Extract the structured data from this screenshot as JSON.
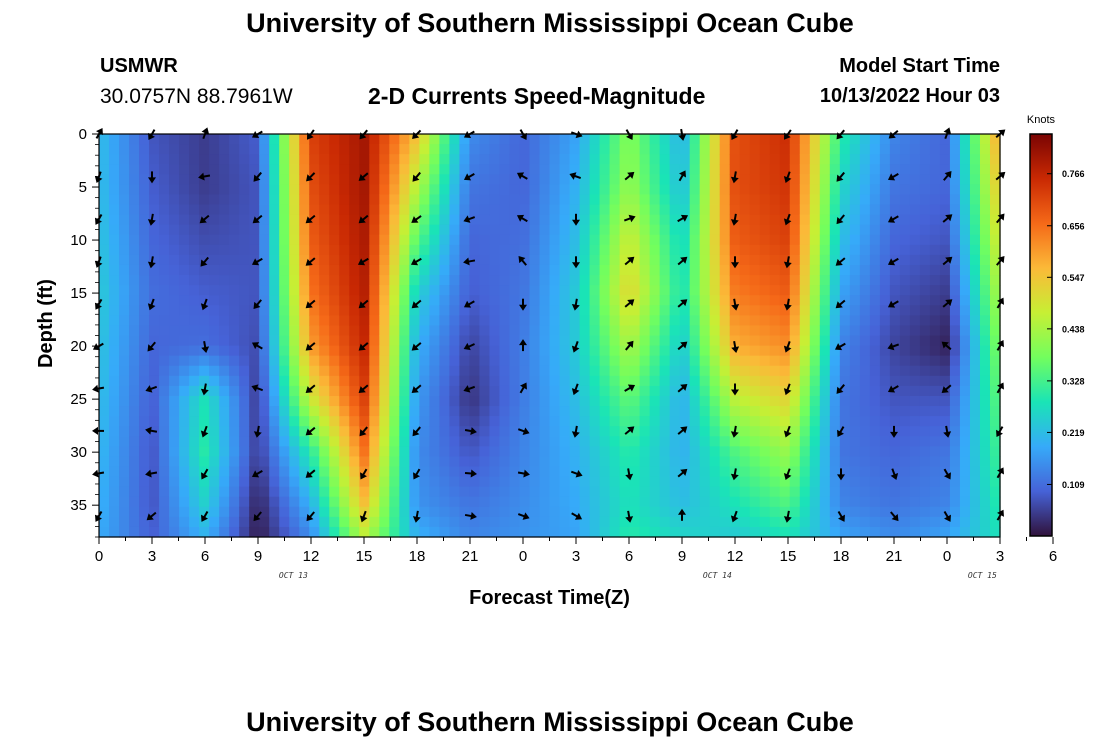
{
  "header": {
    "title": "University of Southern Mississippi Ocean Cube",
    "station": "USMWR",
    "coords": "30.0757N  88.7961W",
    "subtitle": "2-D Currents Speed-Magnitude",
    "model_start_label": "Model Start Time",
    "model_start_value": "10/13/2022 Hour 03"
  },
  "footer": {
    "title": "University of Southern Mississippi Ocean Cube"
  },
  "colors": {
    "stops": [
      "#30123b",
      "#4662d7",
      "#36aaf9",
      "#1ae4b6",
      "#72fe5e",
      "#c7ef34",
      "#fbb938",
      "#f56918",
      "#c92903",
      "#7a0403"
    ]
  },
  "chart_data": {
    "type": "heatmap",
    "xlabel": "Forecast Time(Z)",
    "ylabel": "Depth (ft)",
    "x_ticks": [
      "0",
      "3",
      "6",
      "9",
      "12",
      "15",
      "18",
      "21",
      "0",
      "3",
      "6",
      "9",
      "12",
      "15",
      "18",
      "21",
      "0",
      "3",
      "6"
    ],
    "x_range_hours": [
      0,
      51
    ],
    "y_ticks": [
      "0",
      "5",
      "10",
      "15",
      "20",
      "25",
      "30",
      "35"
    ],
    "y_range_ft": [
      0,
      38
    ],
    "date_labels": [
      {
        "text": "OCT 13",
        "hour": 11
      },
      {
        "text": "OCT 14",
        "hour": 35
      },
      {
        "text": "OCT 15",
        "hour": 50
      }
    ],
    "colorbar": {
      "title": "Knots",
      "ticks": [
        "0.766",
        "0.656",
        "0.547",
        "0.438",
        "0.328",
        "0.219",
        "0.109"
      ],
      "tick_values": [
        0.766,
        0.656,
        0.547,
        0.438,
        0.328,
        0.219,
        0.109
      ],
      "range": [
        0,
        0.85
      ]
    },
    "speed_columns": [
      {
        "hour": 0,
        "speed": [
          0.22,
          0.22,
          0.23,
          0.24,
          0.23,
          0.22,
          0.21,
          0.2,
          0.19
        ]
      },
      {
        "hour": 3,
        "speed": [
          0.08,
          0.09,
          0.1,
          0.11,
          0.1,
          0.09,
          0.08,
          0.08,
          0.09
        ]
      },
      {
        "hour": 6,
        "speed": [
          0.05,
          0.05,
          0.07,
          0.09,
          0.11,
          0.28,
          0.3,
          0.25,
          0.2
        ]
      },
      {
        "hour": 9,
        "speed": [
          0.09,
          0.08,
          0.08,
          0.08,
          0.07,
          0.05,
          0.05,
          0.02,
          0.01
        ]
      },
      {
        "hour": 12,
        "speed": [
          0.72,
          0.7,
          0.68,
          0.65,
          0.6,
          0.48,
          0.3,
          0.2,
          0.15
        ]
      },
      {
        "hour": 15,
        "speed": [
          0.8,
          0.8,
          0.79,
          0.78,
          0.76,
          0.72,
          0.65,
          0.55,
          0.45
        ]
      },
      {
        "hour": 18,
        "speed": [
          0.55,
          0.45,
          0.35,
          0.25,
          0.2,
          0.17,
          0.15,
          0.16,
          0.2
        ]
      },
      {
        "hour": 21,
        "speed": [
          0.15,
          0.12,
          0.1,
          0.09,
          0.06,
          0.04,
          0.08,
          0.12,
          0.14
        ]
      },
      {
        "hour": 24,
        "speed": [
          0.1,
          0.1,
          0.11,
          0.12,
          0.13,
          0.13,
          0.14,
          0.15,
          0.16
        ]
      },
      {
        "hour": 27,
        "speed": [
          0.18,
          0.2,
          0.22,
          0.24,
          0.24,
          0.22,
          0.2,
          0.19,
          0.18
        ]
      },
      {
        "hour": 30,
        "speed": [
          0.4,
          0.42,
          0.48,
          0.52,
          0.44,
          0.36,
          0.3,
          0.28,
          0.3
        ]
      },
      {
        "hour": 33,
        "speed": [
          0.2,
          0.22,
          0.26,
          0.28,
          0.24,
          0.2,
          0.2,
          0.22,
          0.26
        ]
      },
      {
        "hour": 36,
        "speed": [
          0.7,
          0.7,
          0.68,
          0.64,
          0.58,
          0.46,
          0.34,
          0.28,
          0.24
        ]
      },
      {
        "hour": 39,
        "speed": [
          0.75,
          0.74,
          0.72,
          0.68,
          0.62,
          0.52,
          0.42,
          0.34,
          0.28
        ]
      },
      {
        "hour": 42,
        "speed": [
          0.3,
          0.26,
          0.22,
          0.18,
          0.14,
          0.12,
          0.12,
          0.14,
          0.18
        ]
      },
      {
        "hour": 45,
        "speed": [
          0.14,
          0.12,
          0.1,
          0.08,
          0.06,
          0.08,
          0.1,
          0.12,
          0.15
        ]
      },
      {
        "hour": 48,
        "speed": [
          0.1,
          0.1,
          0.08,
          0.05,
          0.02,
          0.08,
          0.12,
          0.14,
          0.18
        ]
      },
      {
        "hour": 51,
        "speed": [
          0.6,
          0.55,
          0.5,
          0.45,
          0.4,
          0.36,
          0.33,
          0.3,
          0.28
        ]
      }
    ],
    "speed_depths_ft": [
      0,
      5,
      10,
      15,
      20,
      25,
      30,
      35,
      38
    ],
    "vector_depths_ft": [
      0,
      4,
      8,
      12,
      16,
      20,
      24,
      28,
      32,
      36
    ],
    "vector_hours": [
      0,
      3,
      6,
      9,
      12,
      15,
      18,
      21,
      24,
      27,
      30,
      33,
      36,
      39,
      42,
      45,
      48,
      51
    ],
    "vector_directions_deg": [
      [
        300,
        120,
        290,
        150,
        125,
        130,
        135,
        150,
        60,
        20,
        60,
        80,
        120,
        125,
        130,
        140,
        290,
        320
      ],
      [
        110,
        90,
        170,
        130,
        135,
        140,
        130,
        150,
        210,
        200,
        320,
        300,
        100,
        110,
        130,
        150,
        310,
        320
      ],
      [
        120,
        100,
        140,
        140,
        140,
        140,
        145,
        160,
        210,
        90,
        340,
        330,
        100,
        110,
        130,
        150,
        320,
        310
      ],
      [
        110,
        100,
        130,
        150,
        140,
        150,
        150,
        170,
        230,
        90,
        320,
        320,
        90,
        100,
        140,
        150,
        320,
        310
      ],
      [
        120,
        110,
        110,
        130,
        140,
        140,
        140,
        150,
        90,
        100,
        320,
        320,
        80,
        100,
        140,
        150,
        320,
        300
      ],
      [
        150,
        130,
        80,
        210,
        140,
        140,
        140,
        155,
        270,
        110,
        310,
        320,
        80,
        110,
        150,
        160,
        220,
        300
      ],
      [
        170,
        160,
        100,
        200,
        140,
        140,
        140,
        160,
        300,
        110,
        330,
        320,
        90,
        110,
        130,
        150,
        140,
        300
      ],
      [
        180,
        190,
        110,
        100,
        140,
        130,
        130,
        10,
        20,
        100,
        320,
        320,
        100,
        110,
        120,
        90,
        80,
        120
      ],
      [
        170,
        170,
        120,
        150,
        140,
        120,
        120,
        5,
        10,
        20,
        80,
        320,
        100,
        110,
        90,
        70,
        60,
        300
      ],
      [
        120,
        140,
        120,
        130,
        130,
        110,
        100,
        10,
        20,
        30,
        80,
        270,
        110,
        100,
        60,
        50,
        60,
        300
      ]
    ]
  }
}
